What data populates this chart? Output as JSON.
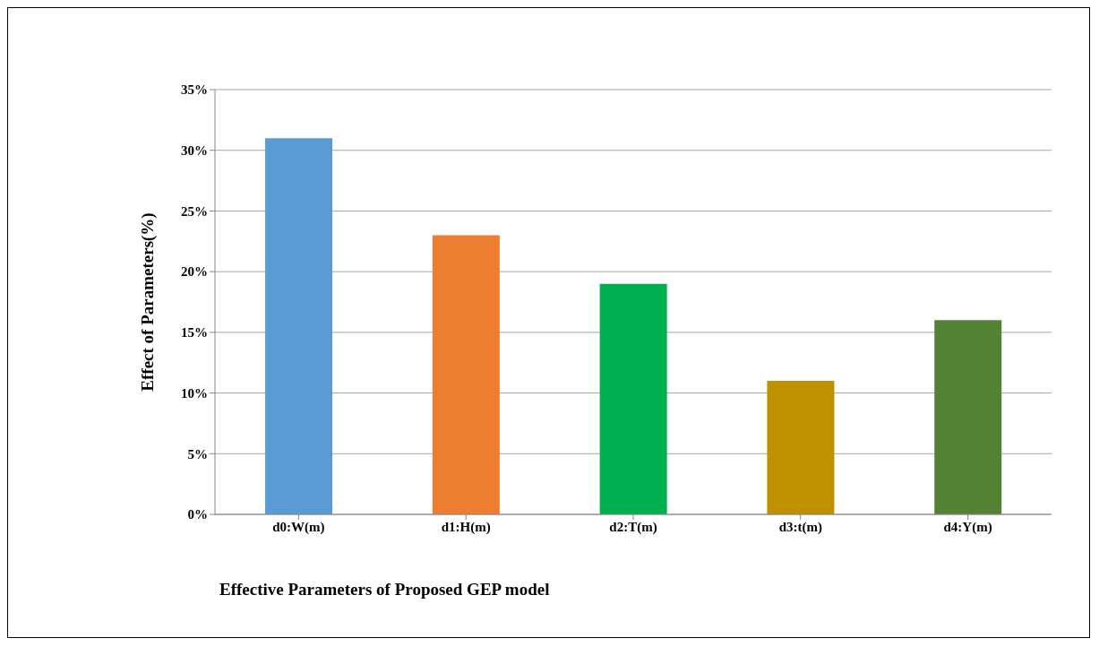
{
  "chart_data": {
    "type": "bar",
    "xlabel": "Effective Parameters of Proposed GEP model",
    "ylabel": "Effect of Parameters(%)",
    "categories": [
      "d0:W(m)",
      "d1:H(m)",
      "d2:T(m)",
      "d3:t(m)",
      "d4:Y(m)"
    ],
    "values": [
      31,
      23,
      19,
      11,
      16
    ],
    "colors": [
      "#5b9bd5",
      "#ed7d31",
      "#00b050",
      "#bf9000",
      "#548235"
    ],
    "ylim": [
      0,
      35
    ],
    "yticks": [
      {
        "value": 0,
        "label": "0%"
      },
      {
        "value": 5,
        "label": "5%"
      },
      {
        "value": 10,
        "label": "10%"
      },
      {
        "value": 15,
        "label": "15%"
      },
      {
        "value": 20,
        "label": "20%"
      },
      {
        "value": 25,
        "label": "25%"
      },
      {
        "value": 30,
        "label": "30%"
      },
      {
        "value": 35,
        "label": "35%"
      }
    ],
    "grid": "y",
    "legend": false
  }
}
